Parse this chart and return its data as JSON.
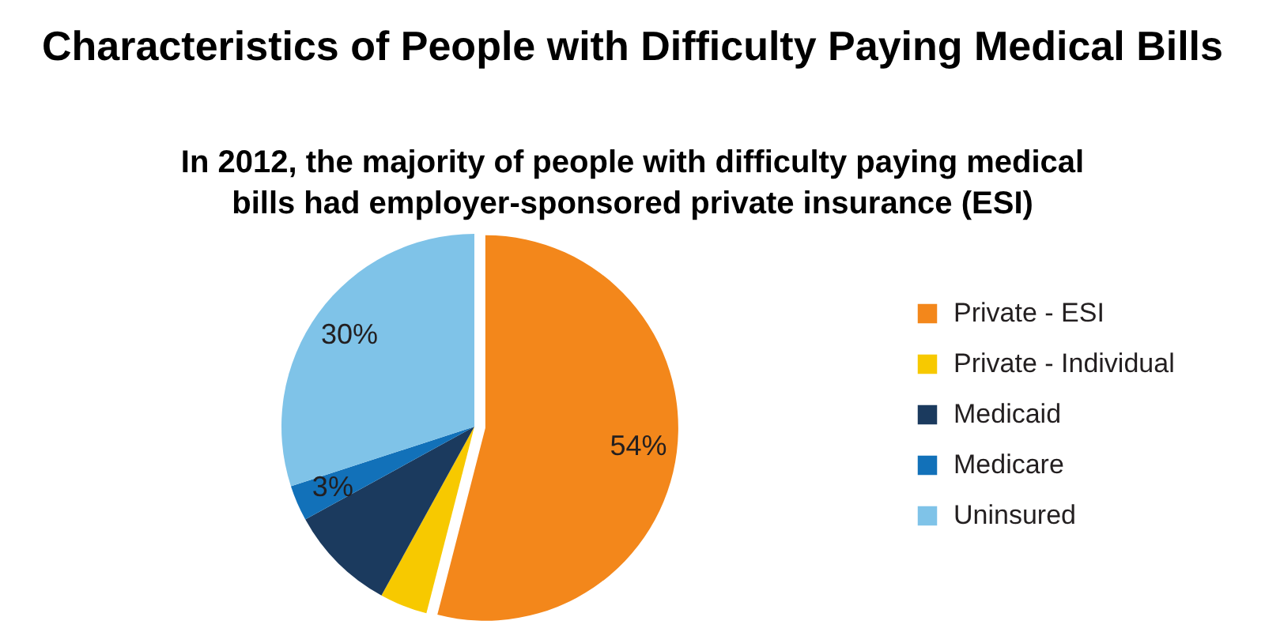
{
  "chart_data": {
    "type": "pie",
    "title": "Characteristics of People with Difficulty Paying Medical Bills",
    "subtitle": "In 2012, the majority of people with difficulty paying medical bills had employer-sponsored private insurance (ESI)",
    "categories": [
      "Private - ESI",
      "Private - Individual",
      "Medicaid",
      "Medicare",
      "Uninsured"
    ],
    "values": [
      54,
      4,
      9,
      3,
      30
    ],
    "colors": [
      "#f3871b",
      "#f7c900",
      "#1b3a5e",
      "#1271b9",
      "#7fc3e8"
    ],
    "value_labels": [
      "54%",
      null,
      null,
      "3%",
      "30%"
    ],
    "legend": "right"
  }
}
